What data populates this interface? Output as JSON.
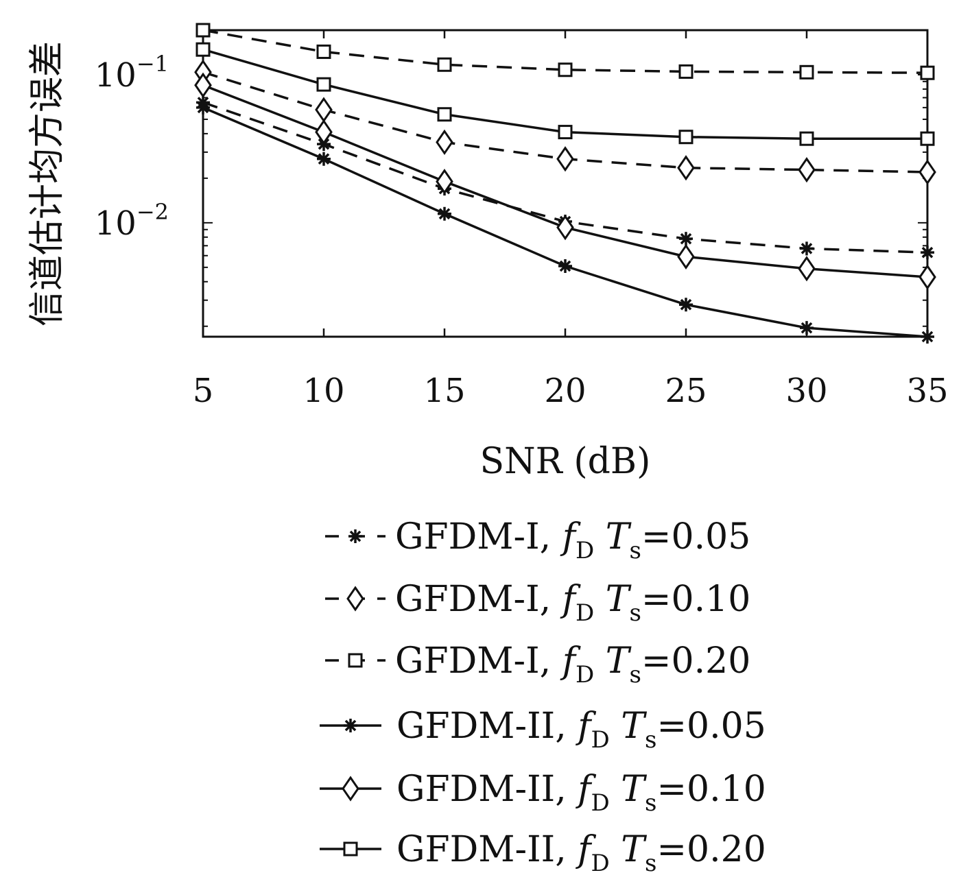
{
  "chart_data": {
    "type": "line",
    "xlabel": "SNR (dB)",
    "ylabel": "信道估计均方误差",
    "x": [
      5,
      10,
      15,
      20,
      25,
      30,
      35
    ],
    "xticks": [
      "5",
      "10",
      "15",
      "20",
      "25",
      "30",
      "35"
    ],
    "yscale": "log",
    "ylim": [
      0.0017,
      0.2
    ],
    "yticks": [
      {
        "value": 0.1,
        "base": "10",
        "exp": "−1"
      },
      {
        "value": 0.01,
        "base": "10",
        "exp": "−2"
      }
    ],
    "grid": false,
    "legend_position": "bottom",
    "series": [
      {
        "name": "GFDM-I",
        "fd_value": "0.05",
        "linestyle": "dashed",
        "marker": "asterisk",
        "values": [
          0.065,
          0.034,
          0.017,
          0.0102,
          0.0078,
          0.0067,
          0.0063
        ]
      },
      {
        "name": "GFDM-I",
        "fd_value": "0.10",
        "linestyle": "dashed",
        "marker": "diamond",
        "values": [
          0.104,
          0.058,
          0.035,
          0.027,
          0.0235,
          0.0228,
          0.022
        ]
      },
      {
        "name": "GFDM-I",
        "fd_value": "0.20",
        "linestyle": "dashed",
        "marker": "square",
        "values": [
          0.2,
          0.143,
          0.117,
          0.108,
          0.105,
          0.104,
          0.103
        ]
      },
      {
        "name": "GFDM-II",
        "fd_value": "0.05",
        "linestyle": "solid",
        "marker": "asterisk",
        "values": [
          0.06,
          0.027,
          0.0115,
          0.0051,
          0.0028,
          0.00195,
          0.0017
        ]
      },
      {
        "name": "GFDM-II",
        "fd_value": "0.10",
        "linestyle": "solid",
        "marker": "diamond",
        "values": [
          0.085,
          0.041,
          0.019,
          0.0093,
          0.0059,
          0.0049,
          0.0043
        ]
      },
      {
        "name": "GFDM-II",
        "fd_value": "0.20",
        "linestyle": "solid",
        "marker": "square",
        "values": [
          0.148,
          0.086,
          0.054,
          0.041,
          0.038,
          0.037,
          0.037
        ]
      }
    ],
    "legend_math": {
      "f": "f",
      "f_sub": "D",
      "t": "T",
      "t_sub": "s",
      "eq": "="
    }
  }
}
